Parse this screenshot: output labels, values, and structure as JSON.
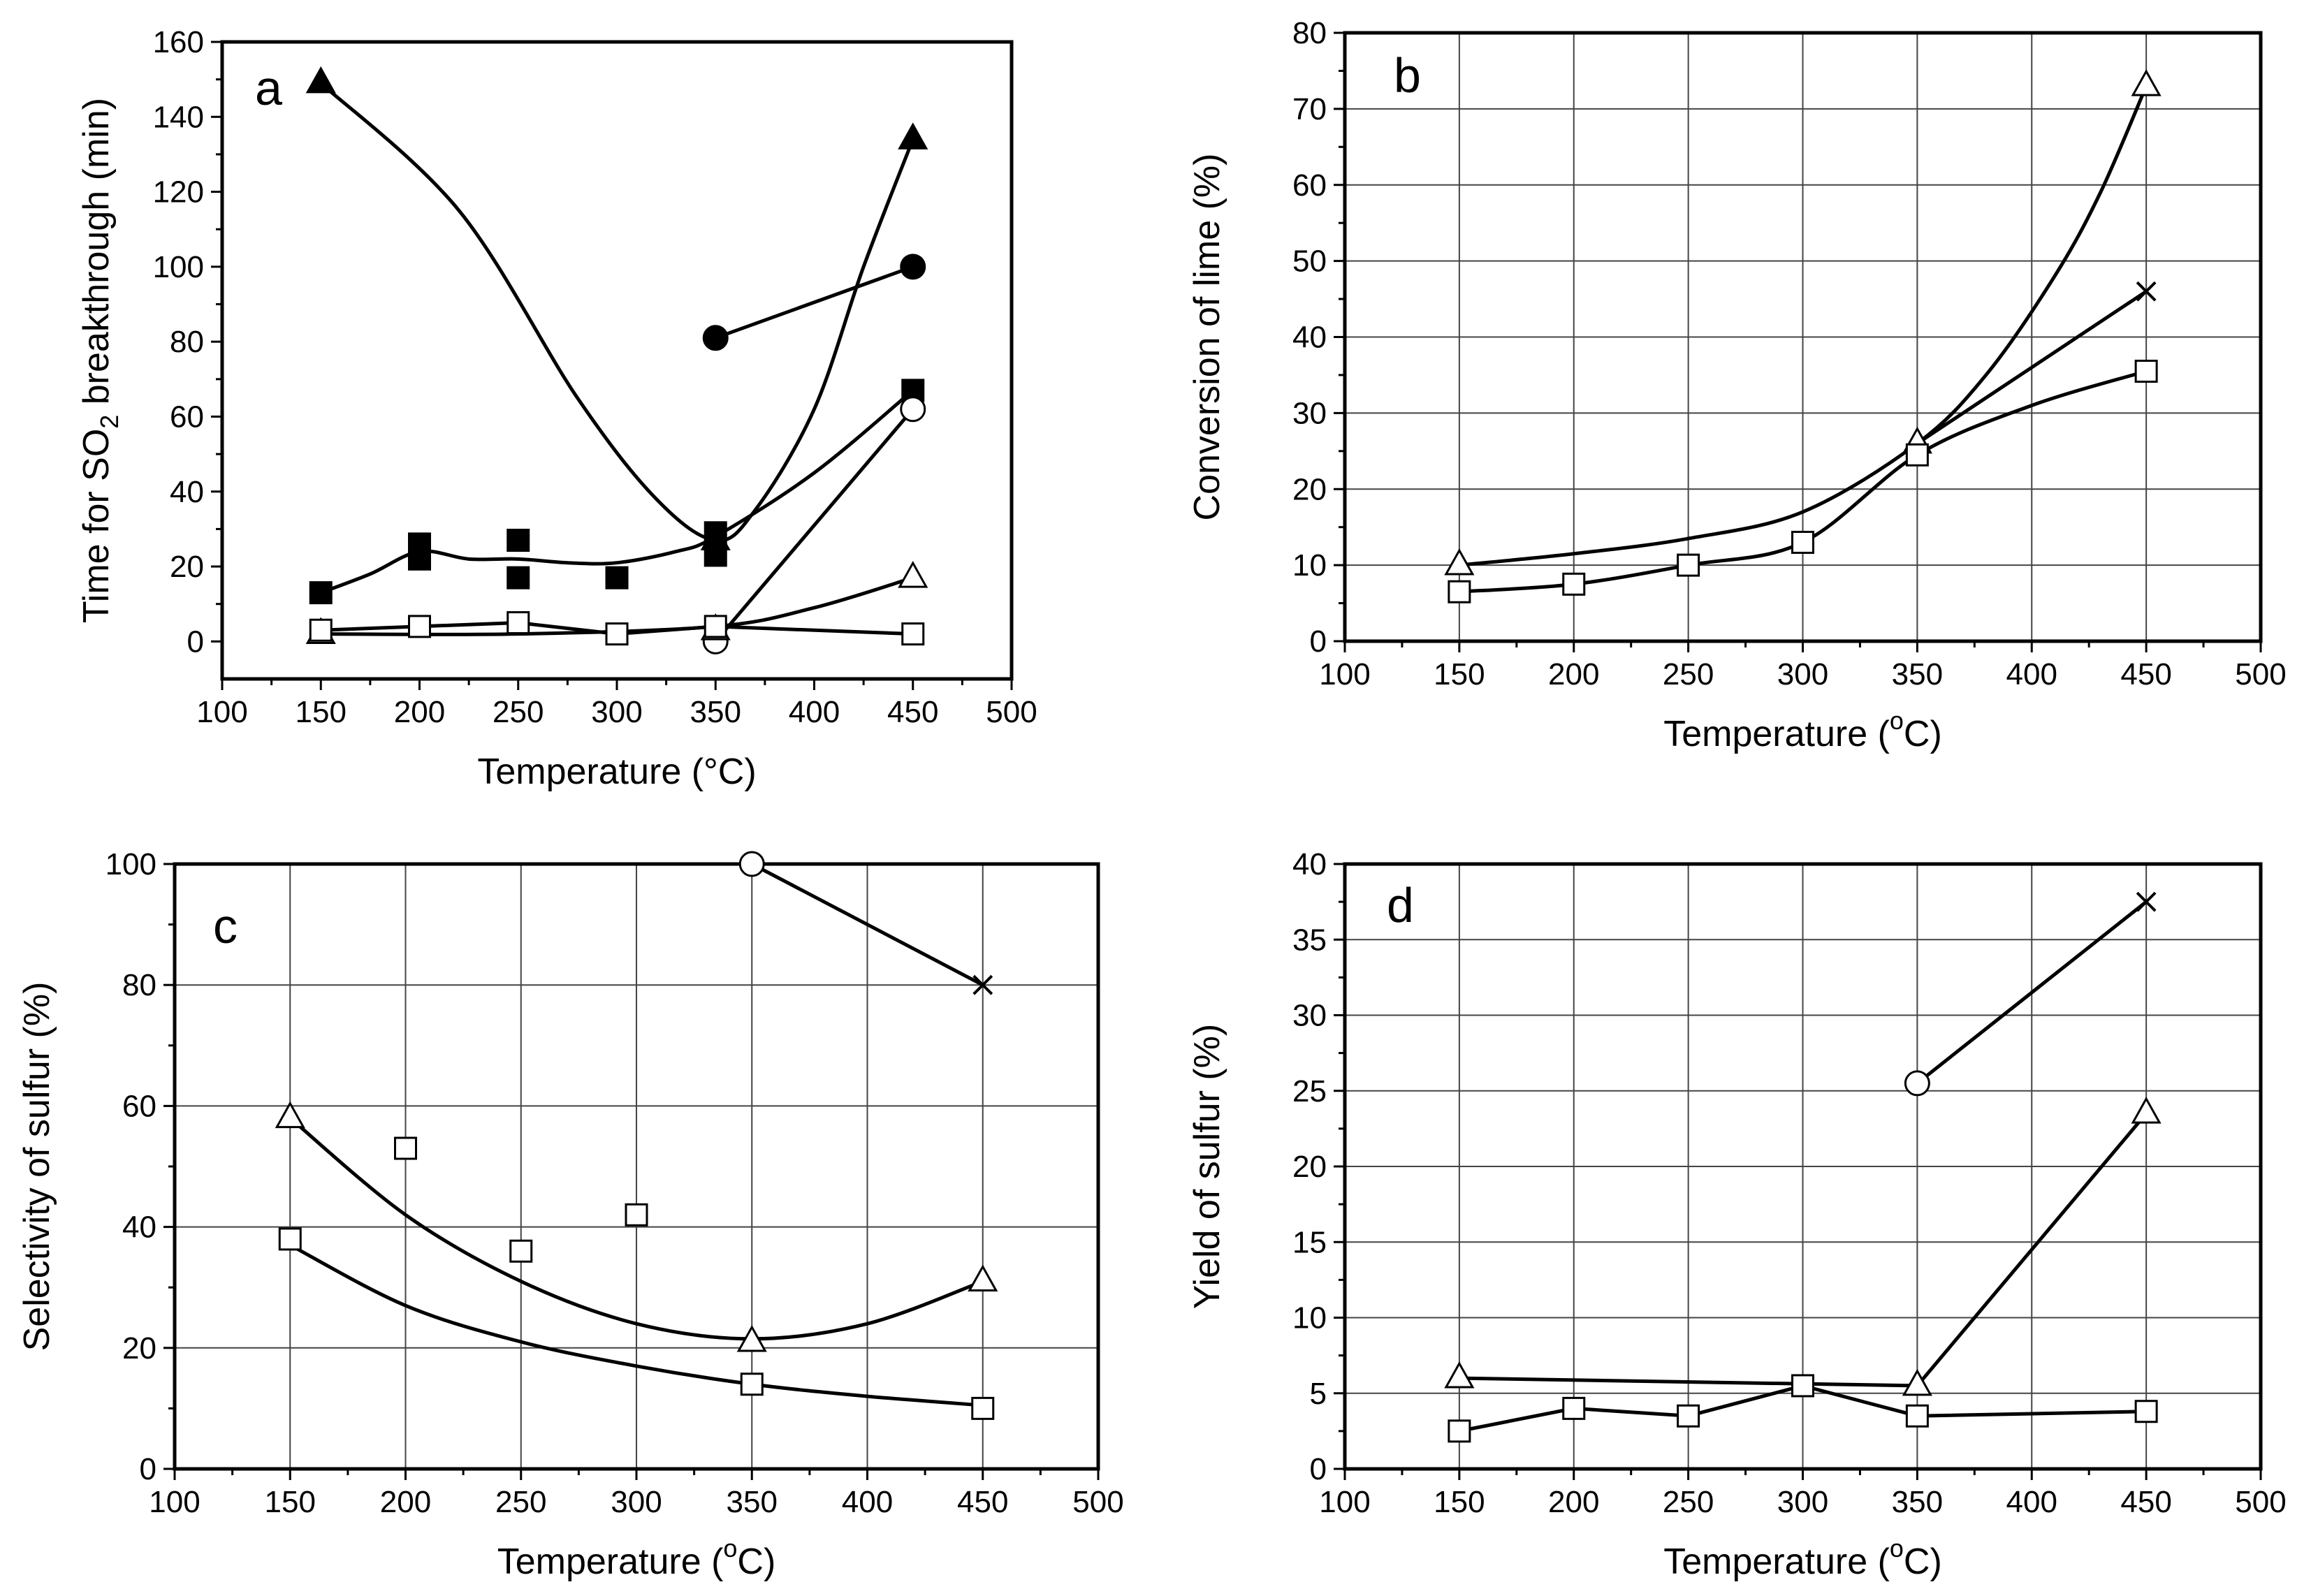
{
  "chart_data": [
    {
      "panel": "a",
      "type": "line",
      "xlabel": "Temperature (°C)",
      "ylabel_parts": [
        "Time for SO",
        "2",
        " breakthrough (min)"
      ],
      "xlim": [
        100,
        500
      ],
      "ylim": [
        -10,
        160
      ],
      "xticks": [
        100,
        150,
        200,
        250,
        300,
        350,
        400,
        450,
        500
      ],
      "yticks": [
        0,
        20,
        40,
        60,
        80,
        100,
        120,
        140,
        160
      ],
      "grid": false,
      "series": [
        {
          "name": "filled triangle",
          "marker": "triangle",
          "filled": true,
          "smooth": true,
          "points": [
            [
              150,
              149
            ],
            [
              350,
              27
            ],
            [
              450,
              134
            ]
          ],
          "curve": [
            [
              150,
              149
            ],
            [
              220,
              115
            ],
            [
              280,
              65
            ],
            [
              320,
              38
            ],
            [
              350,
              27
            ],
            [
              370,
              35
            ],
            [
              400,
              62
            ],
            [
              425,
              100
            ],
            [
              450,
              134
            ]
          ]
        },
        {
          "name": "filled circle",
          "marker": "circle",
          "filled": true,
          "smooth": false,
          "points": [
            [
              350,
              81
            ],
            [
              450,
              100
            ]
          ],
          "curve": [
            [
              350,
              81
            ],
            [
              450,
              100
            ]
          ]
        },
        {
          "name": "x",
          "marker": "x",
          "filled": false,
          "smooth": false,
          "points": [
            [
              450,
              100
            ]
          ],
          "curve": []
        },
        {
          "name": "filled square",
          "marker": "square",
          "filled": true,
          "smooth": true,
          "points": [
            [
              150,
              13
            ],
            [
              200,
              26
            ],
            [
              200,
              22
            ],
            [
              250,
              27
            ],
            [
              250,
              17
            ],
            [
              300,
              17
            ],
            [
              350,
              29
            ],
            [
              350,
              23
            ],
            [
              450,
              67
            ]
          ],
          "curve": [
            [
              150,
              13
            ],
            [
              175,
              18
            ],
            [
              200,
              24
            ],
            [
              225,
              22
            ],
            [
              250,
              22
            ],
            [
              275,
              21
            ],
            [
              300,
              21
            ],
            [
              330,
              24
            ],
            [
              350,
              28
            ],
            [
              400,
              45
            ],
            [
              450,
              67
            ]
          ]
        },
        {
          "name": "open circle",
          "marker": "circle",
          "filled": false,
          "smooth": false,
          "points": [
            [
              350,
              0
            ],
            [
              450,
              62
            ]
          ],
          "curve": [
            [
              350,
              0
            ],
            [
              450,
              62
            ]
          ]
        },
        {
          "name": "open triangle",
          "marker": "triangle",
          "filled": false,
          "smooth": true,
          "points": [
            [
              150,
              2
            ],
            [
              350,
              3
            ],
            [
              450,
              17
            ]
          ],
          "curve": [
            [
              150,
              2
            ],
            [
              250,
              2
            ],
            [
              350,
              4
            ],
            [
              400,
              9
            ],
            [
              450,
              17
            ]
          ]
        },
        {
          "name": "open square",
          "marker": "square",
          "filled": false,
          "smooth": false,
          "points": [
            [
              150,
              3
            ],
            [
              200,
              4
            ],
            [
              250,
              5
            ],
            [
              300,
              2
            ],
            [
              350,
              4
            ],
            [
              450,
              2
            ]
          ],
          "curve": [
            [
              150,
              3
            ],
            [
              200,
              4
            ],
            [
              250,
              5
            ],
            [
              300,
              2
            ],
            [
              350,
              4
            ],
            [
              450,
              2
            ]
          ]
        }
      ]
    },
    {
      "panel": "b",
      "type": "line",
      "xlabel_parts": [
        "Temperature  (",
        "o",
        "C)"
      ],
      "ylabel": "Conversion of lime  (%)",
      "xlim": [
        100,
        500
      ],
      "ylim": [
        0,
        80
      ],
      "xticks": [
        100,
        150,
        200,
        250,
        300,
        350,
        400,
        450,
        500
      ],
      "yticks": [
        0,
        10,
        20,
        30,
        40,
        50,
        60,
        70,
        80
      ],
      "grid": true,
      "series": [
        {
          "name": "open triangle",
          "marker": "triangle",
          "filled": false,
          "smooth": true,
          "points": [
            [
              150,
              10
            ],
            [
              350,
              26
            ],
            [
              450,
              73
            ]
          ],
          "curve": [
            [
              150,
              10
            ],
            [
              200,
              11.5
            ],
            [
              250,
              13.5
            ],
            [
              300,
              17
            ],
            [
              350,
              26
            ],
            [
              380,
              35
            ],
            [
              410,
              48
            ],
            [
              430,
              59
            ],
            [
              450,
              73
            ]
          ]
        },
        {
          "name": "x",
          "marker": "x",
          "filled": false,
          "smooth": true,
          "points": [
            [
              450,
              46
            ]
          ],
          "curve": [
            [
              350,
              26
            ],
            [
              400,
              36
            ],
            [
              450,
              46
            ]
          ]
        },
        {
          "name": "open square",
          "marker": "square",
          "filled": false,
          "smooth": true,
          "points": [
            [
              150,
              6.5
            ],
            [
              200,
              7.5
            ],
            [
              250,
              10
            ],
            [
              300,
              13
            ],
            [
              350,
              24.5
            ],
            [
              450,
              35.5
            ]
          ],
          "curve": [
            [
              150,
              6.5
            ],
            [
              200,
              7.5
            ],
            [
              250,
              10
            ],
            [
              300,
              13
            ],
            [
              350,
              24.5
            ],
            [
              400,
              31
            ],
            [
              450,
              35.5
            ]
          ]
        }
      ]
    },
    {
      "panel": "c",
      "type": "line",
      "xlabel_parts": [
        "Temperature  (",
        "o",
        "C)"
      ],
      "ylabel": "Selectivity of sulfur  (%)",
      "xlim": [
        100,
        500
      ],
      "ylim": [
        0,
        100
      ],
      "xticks": [
        100,
        150,
        200,
        250,
        300,
        350,
        400,
        450,
        500
      ],
      "yticks": [
        0,
        20,
        40,
        60,
        80,
        100
      ],
      "grid": true,
      "series": [
        {
          "name": "open circle",
          "marker": "circle",
          "filled": false,
          "smooth": false,
          "points": [
            [
              350,
              100
            ]
          ],
          "curve": [
            [
              350,
              100
            ],
            [
              450,
              80
            ]
          ]
        },
        {
          "name": "x",
          "marker": "x",
          "filled": false,
          "smooth": false,
          "points": [
            [
              450,
              80
            ]
          ],
          "curve": []
        },
        {
          "name": "open triangle",
          "marker": "triangle",
          "filled": false,
          "smooth": true,
          "points": [
            [
              150,
              58
            ],
            [
              350,
              21
            ],
            [
              450,
              31
            ]
          ],
          "curve": [
            [
              150,
              58
            ],
            [
              200,
              42
            ],
            [
              250,
              31
            ],
            [
              300,
              24
            ],
            [
              350,
              21.5
            ],
            [
              400,
              24
            ],
            [
              450,
              31
            ]
          ]
        },
        {
          "name": "open square",
          "marker": "square",
          "filled": false,
          "smooth": true,
          "points": [
            [
              150,
              38
            ],
            [
              200,
              53
            ],
            [
              250,
              36
            ],
            [
              300,
              42
            ],
            [
              350,
              14
            ],
            [
              450,
              10
            ]
          ],
          "curve": [
            [
              150,
              37
            ],
            [
              200,
              27
            ],
            [
              250,
              21
            ],
            [
              300,
              17
            ],
            [
              350,
              14
            ],
            [
              400,
              12
            ],
            [
              450,
              10.5
            ]
          ]
        }
      ]
    },
    {
      "panel": "d",
      "type": "line",
      "xlabel_parts": [
        "Temperature  (",
        "o",
        "C)"
      ],
      "ylabel": "Yield of sulfur  (%)",
      "xlim": [
        100,
        500
      ],
      "ylim": [
        0,
        40
      ],
      "xticks": [
        100,
        150,
        200,
        250,
        300,
        350,
        400,
        450,
        500
      ],
      "yticks": [
        0,
        5,
        10,
        15,
        20,
        25,
        30,
        35,
        40
      ],
      "grid": true,
      "series": [
        {
          "name": "open circle",
          "marker": "circle",
          "filled": false,
          "smooth": false,
          "points": [
            [
              350,
              25.5
            ]
          ],
          "curve": [
            [
              350,
              25.5
            ],
            [
              450,
              37.5
            ]
          ]
        },
        {
          "name": "x",
          "marker": "x",
          "filled": false,
          "smooth": false,
          "points": [
            [
              450,
              37.5
            ]
          ],
          "curve": []
        },
        {
          "name": "open triangle",
          "marker": "triangle",
          "filled": false,
          "smooth": false,
          "points": [
            [
              150,
              6
            ],
            [
              350,
              5.5
            ],
            [
              450,
              23.5
            ]
          ],
          "curve": [
            [
              150,
              6
            ],
            [
              350,
              5.5
            ],
            [
              450,
              23.5
            ]
          ]
        },
        {
          "name": "open square",
          "marker": "square",
          "filled": false,
          "smooth": false,
          "points": [
            [
              150,
              2.5
            ],
            [
              200,
              4
            ],
            [
              250,
              3.5
            ],
            [
              300,
              5.5
            ],
            [
              350,
              3.5
            ],
            [
              450,
              3.8
            ]
          ],
          "curve": [
            [
              150,
              2.5
            ],
            [
              200,
              4
            ],
            [
              250,
              3.5
            ],
            [
              300,
              5.5
            ],
            [
              350,
              3.5
            ],
            [
              450,
              3.8
            ]
          ]
        }
      ]
    }
  ]
}
